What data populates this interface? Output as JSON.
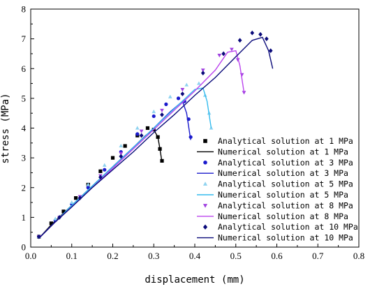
{
  "chart_data": {
    "type": "scatter",
    "xlabel": "displacement (mm)",
    "ylabel": "stress (MPa)",
    "xlim": [
      0.0,
      0.8
    ],
    "ylim": [
      0,
      8
    ],
    "x_ticks": [
      "0.0",
      "0.1",
      "0.2",
      "0.3",
      "0.4",
      "0.5",
      "0.6",
      "0.7",
      "0.8"
    ],
    "y_ticks": [
      "0",
      "1",
      "2",
      "3",
      "4",
      "5",
      "6",
      "7",
      "8"
    ],
    "grid": false,
    "legend_position": "right",
    "series": [
      {
        "name": "Analytical solution at 1 MPa",
        "kind": "markers",
        "marker": "square",
        "color": "#000000",
        "x": [
          0.02,
          0.05,
          0.08,
          0.11,
          0.14,
          0.17,
          0.2,
          0.23,
          0.26,
          0.285,
          0.3,
          0.31,
          0.315,
          0.32
        ],
        "y": [
          0.35,
          0.8,
          1.2,
          1.65,
          2.1,
          2.55,
          3.0,
          3.4,
          3.75,
          4.0,
          3.95,
          3.7,
          3.3,
          2.9
        ]
      },
      {
        "name": "Numerical solution at 1 MPa",
        "kind": "line",
        "color": "#000000",
        "x": [
          0.02,
          0.05,
          0.1,
          0.15,
          0.2,
          0.25,
          0.28,
          0.3,
          0.31,
          0.315,
          0.32
        ],
        "y": [
          0.3,
          0.75,
          1.4,
          2.05,
          2.7,
          3.35,
          3.75,
          3.95,
          3.7,
          3.3,
          2.85
        ]
      },
      {
        "name": "Analytical solution at 3 MPa",
        "kind": "markers",
        "marker": "circle",
        "color": "#1a1acc",
        "x": [
          0.02,
          0.06,
          0.1,
          0.14,
          0.18,
          0.22,
          0.26,
          0.3,
          0.33,
          0.36,
          0.375,
          0.385,
          0.39
        ],
        "y": [
          0.35,
          0.9,
          1.45,
          2.0,
          2.6,
          3.2,
          3.8,
          4.4,
          4.8,
          5.0,
          4.9,
          4.3,
          3.7
        ]
      },
      {
        "name": "Numerical solution at 3 MPa",
        "kind": "line",
        "color": "#1a1acc",
        "x": [
          0.02,
          0.06,
          0.1,
          0.15,
          0.2,
          0.25,
          0.3,
          0.34,
          0.37,
          0.38,
          0.39
        ],
        "y": [
          0.3,
          0.85,
          1.4,
          2.05,
          2.7,
          3.35,
          4.0,
          4.55,
          4.9,
          4.5,
          3.6
        ]
      },
      {
        "name": "Analytical solution at 5 MPa",
        "kind": "markers",
        "marker": "triangle-up",
        "color": "#8fd3f0",
        "x": [
          0.02,
          0.06,
          0.1,
          0.14,
          0.18,
          0.22,
          0.26,
          0.3,
          0.34,
          0.38,
          0.41,
          0.425,
          0.435,
          0.44
        ],
        "y": [
          0.35,
          0.95,
          1.5,
          2.1,
          2.75,
          3.4,
          4.0,
          4.55,
          5.05,
          5.45,
          5.5,
          5.1,
          4.5,
          4.0
        ]
      },
      {
        "name": "Numerical solution at 5 MPa",
        "kind": "line",
        "color": "#33bbee",
        "x": [
          0.02,
          0.06,
          0.1,
          0.15,
          0.2,
          0.25,
          0.3,
          0.35,
          0.4,
          0.42,
          0.43,
          0.44
        ],
        "y": [
          0.3,
          0.85,
          1.4,
          2.05,
          2.7,
          3.35,
          4.0,
          4.65,
          5.3,
          5.35,
          4.9,
          4.0
        ]
      },
      {
        "name": "Analytical solution at 8 MPa",
        "kind": "markers",
        "marker": "triangle-down",
        "color": "#a040e0",
        "x": [
          0.02,
          0.07,
          0.12,
          0.17,
          0.22,
          0.27,
          0.32,
          0.37,
          0.42,
          0.46,
          0.49,
          0.505,
          0.515,
          0.52
        ],
        "y": [
          0.35,
          1.0,
          1.7,
          2.4,
          3.15,
          3.9,
          4.6,
          5.3,
          5.95,
          6.45,
          6.65,
          6.3,
          5.8,
          5.2
        ]
      },
      {
        "name": "Numerical solution at 8 MPa",
        "kind": "line",
        "color": "#bb44ee",
        "x": [
          0.02,
          0.06,
          0.1,
          0.15,
          0.2,
          0.25,
          0.3,
          0.35,
          0.4,
          0.45,
          0.48,
          0.5,
          0.51,
          0.52
        ],
        "y": [
          0.3,
          0.85,
          1.35,
          2.0,
          2.65,
          3.3,
          3.95,
          4.6,
          5.25,
          5.95,
          6.55,
          6.6,
          6.1,
          5.2
        ]
      },
      {
        "name": "Analytical solution at 10 MPa",
        "kind": "markers",
        "marker": "diamond",
        "color": "#0a0a7a",
        "x": [
          0.02,
          0.07,
          0.12,
          0.17,
          0.22,
          0.27,
          0.32,
          0.37,
          0.42,
          0.47,
          0.51,
          0.54,
          0.56,
          0.575,
          0.585
        ],
        "y": [
          0.35,
          1.0,
          1.65,
          2.35,
          3.05,
          3.75,
          4.45,
          5.15,
          5.85,
          6.5,
          6.95,
          7.2,
          7.15,
          7.0,
          6.6
        ]
      },
      {
        "name": "Numerical solution at 10 MPa",
        "kind": "line",
        "color": "#0a0a7a",
        "x": [
          0.02,
          0.06,
          0.1,
          0.15,
          0.2,
          0.25,
          0.3,
          0.35,
          0.4,
          0.45,
          0.5,
          0.54,
          0.565,
          0.58,
          0.59
        ],
        "y": [
          0.3,
          0.85,
          1.35,
          2.0,
          2.6,
          3.2,
          3.85,
          4.45,
          5.1,
          5.7,
          6.4,
          6.95,
          7.05,
          6.6,
          6.0
        ]
      }
    ]
  }
}
